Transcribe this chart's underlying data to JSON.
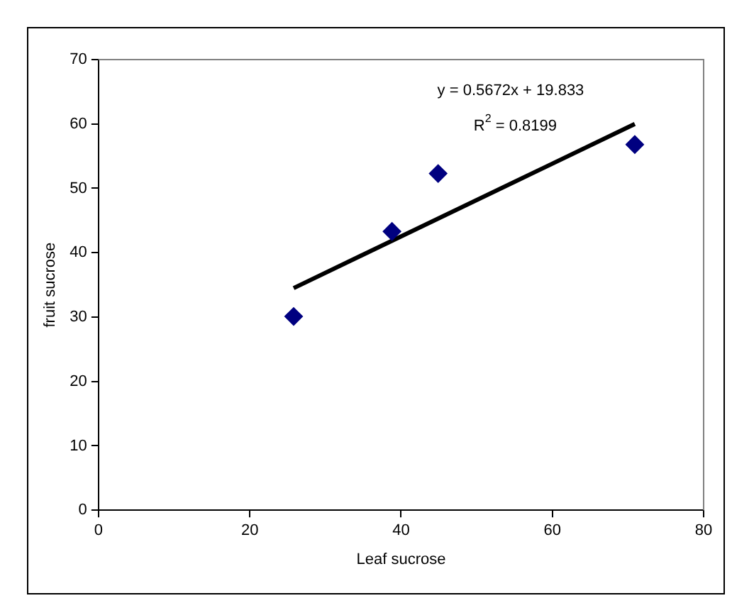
{
  "chart_data": {
    "type": "scatter",
    "xlabel": "Leaf sucrose",
    "ylabel": "fruit sucrose",
    "xlim": [
      0,
      80
    ],
    "xticks": [
      0,
      20,
      40,
      60,
      80
    ],
    "ylim": [
      0,
      70
    ],
    "yticks": [
      0,
      10,
      20,
      30,
      40,
      50,
      60,
      70
    ],
    "grid": false,
    "legend": false,
    "marker": "diamond",
    "series": [
      {
        "color": "#000080",
        "x": [
          25.8,
          38.8,
          44.9,
          70.9
        ],
        "values": [
          30.1,
          43.3,
          52.3,
          56.8
        ]
      },
      {
        "type": "line",
        "color": "#000000",
        "marker": "none",
        "x": [
          25.8,
          70.9
        ],
        "values": [
          34.5,
          60.0
        ]
      }
    ],
    "annotations": [
      "y = 0.5672x + 19.833",
      "R$^{2}$ = 0.8199"
    ]
  }
}
